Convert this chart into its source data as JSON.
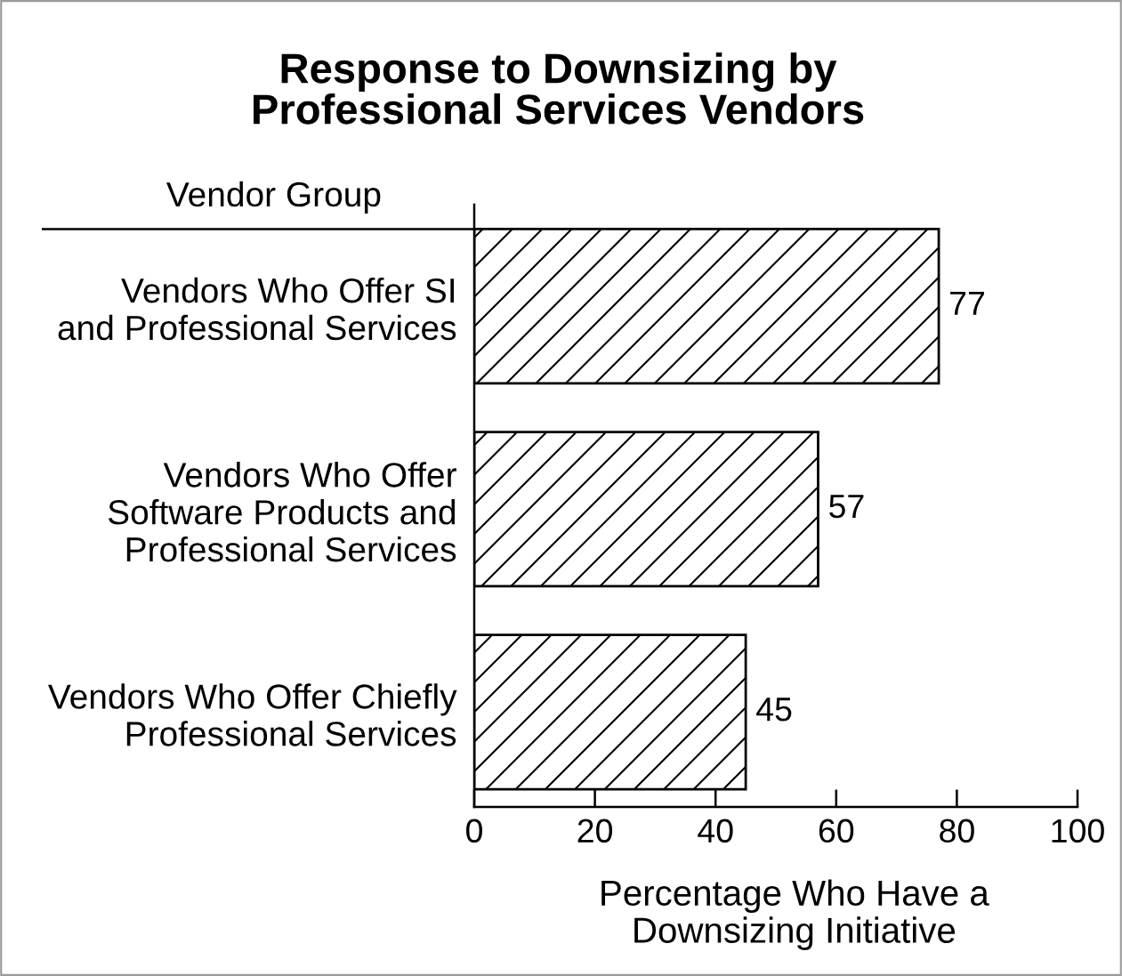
{
  "chart_data": {
    "type": "bar",
    "orientation": "horizontal",
    "title": "Response to Downsizing by\nProfessional Services Vendors",
    "ylabel": "Vendor Group",
    "xlabel": "Percentage Who Have a\nDownsizing Initiative",
    "categories": [
      "Vendors Who Offer SI\nand Professional Services",
      "Vendors Who Offer\nSoftware Products and\nProfessional Services",
      "Vendors Who Offer Chiefly\nProfessional Services"
    ],
    "values": [
      77,
      57,
      45
    ],
    "color": "#000000",
    "xlim": [
      0,
      100
    ],
    "xticks": [
      0,
      20,
      40,
      60,
      80,
      100
    ],
    "data_labels": true
  }
}
